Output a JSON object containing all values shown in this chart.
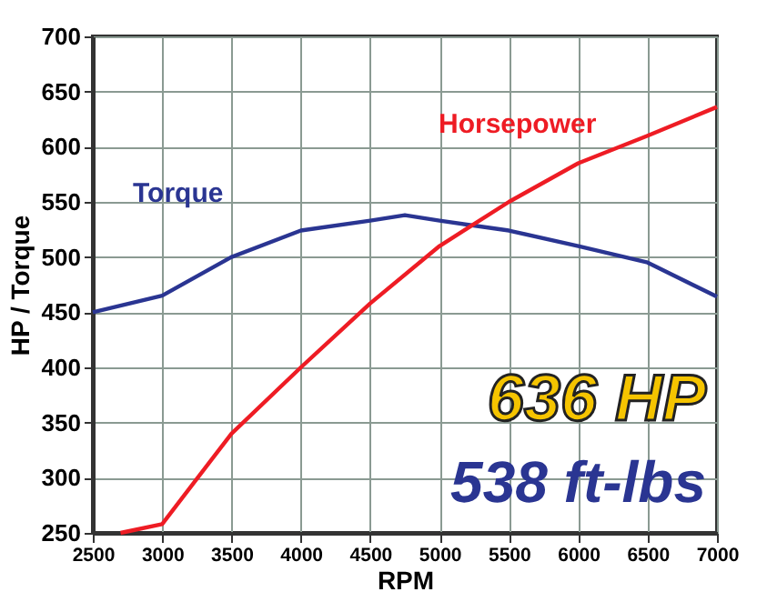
{
  "chart_data": {
    "type": "line",
    "xlabel": "RPM",
    "ylabel": "HP / Torque",
    "xlim": [
      2500,
      7000
    ],
    "xticks": [
      2500,
      3000,
      3500,
      4000,
      4500,
      5000,
      5500,
      6000,
      6500,
      7000
    ],
    "ylim": [
      250,
      700
    ],
    "yticks": [
      250,
      300,
      350,
      400,
      450,
      500,
      550,
      600,
      650,
      700
    ],
    "grid": true,
    "legend": false,
    "line_style": "solid",
    "marker": "none",
    "series": [
      {
        "name": "Torque",
        "color": "#2a3592",
        "x": [
          2500,
          3000,
          3500,
          4000,
          4500,
          4750,
          5000,
          5500,
          6000,
          6500,
          7000
        ],
        "values": [
          450,
          465,
          500,
          524,
          533,
          538,
          533,
          524,
          510,
          495,
          464
        ]
      },
      {
        "name": "Horsepower",
        "color": "#ee1c24",
        "x": [
          2700,
          3000,
          3500,
          4000,
          4500,
          5000,
          5500,
          6000,
          6500,
          7000
        ],
        "values": [
          250,
          258,
          340,
          400,
          458,
          510,
          550,
          585,
          610,
          636
        ]
      }
    ],
    "annotations": [
      "636 HP",
      "538 ft-lbs"
    ]
  }
}
